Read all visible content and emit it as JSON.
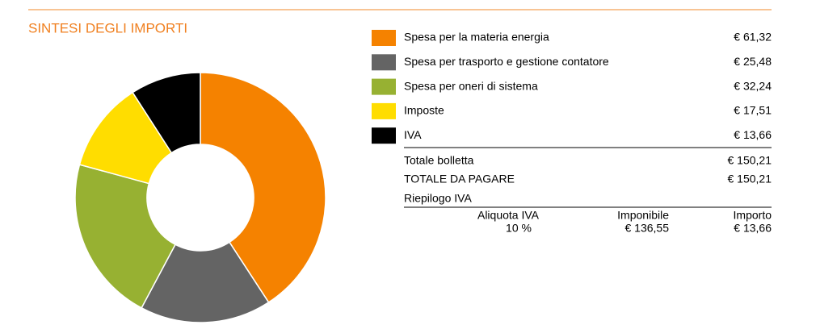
{
  "header": {
    "title": "SINTESI DEGLI IMPORTI"
  },
  "chart_data": {
    "type": "donut",
    "categories": [
      "Spesa per la materia energia",
      "Spesa per trasporto e gestione contatore",
      "Spesa per oneri di sistema",
      "Imposte",
      "IVA"
    ],
    "values": [
      61.32,
      25.48,
      32.24,
      17.51,
      13.66
    ],
    "value_labels": [
      "€ 61,32",
      "€ 25,48",
      "€ 32,24",
      "€ 17,51",
      "€ 13,66"
    ],
    "colors": [
      "#f58200",
      "#646464",
      "#97b132",
      "#ffdd00",
      "#000000"
    ]
  },
  "totals": {
    "rows": [
      [
        "Totale bolletta",
        "€ 150,21"
      ],
      [
        "TOTALE DA PAGARE",
        "€ 150,21"
      ]
    ]
  },
  "vat": {
    "title": "Riepilogo IVA",
    "headers": [
      "Aliquota IVA",
      "Imponibile",
      "Importo"
    ],
    "rows": [
      [
        "10 %",
        "€ 136,55",
        "€ 13,66"
      ]
    ]
  }
}
